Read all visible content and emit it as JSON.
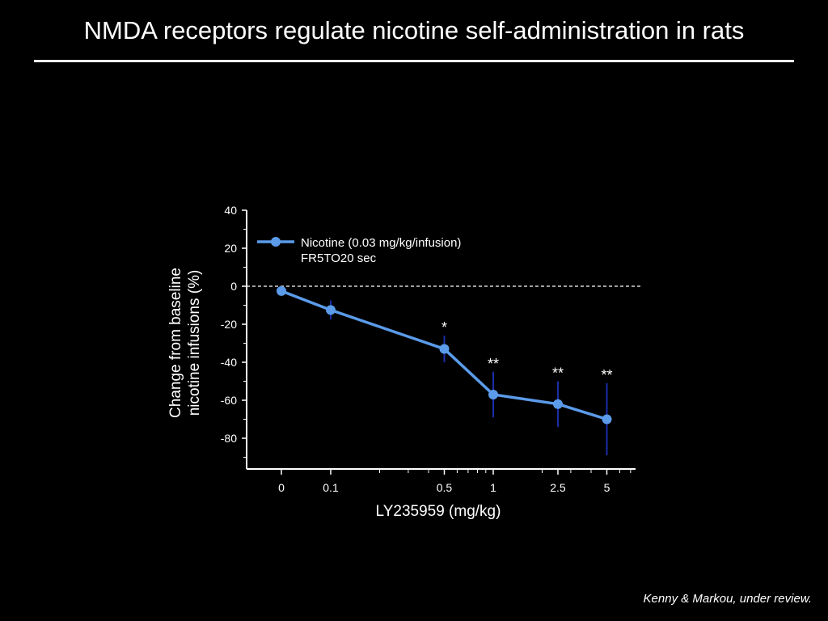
{
  "slide": {
    "title": "NMDA receptors regulate nicotine self-administration in rats",
    "citation": "Kenny & Markou, under review."
  },
  "chart_data": {
    "type": "line",
    "xlabel": "LY235959 (mg/kg)",
    "ylabel": "Change from baseline nicotine infusions (%)",
    "ylabel_lines": [
      "Change from baseline",
      "nicotine infusions (%)"
    ],
    "ylim": [
      -92,
      40
    ],
    "yticks": [
      40,
      20,
      0,
      -20,
      -40,
      -60,
      -80
    ],
    "x_scale": "log (with 0 control point)",
    "x_tick_labels": [
      "0",
      "0.1",
      "0.5",
      "1",
      "2.5",
      "5"
    ],
    "reference_line": {
      "y": 0,
      "style": "dashed"
    },
    "grid": false,
    "legend_position": "top-left",
    "legend": {
      "label_line1": "Nicotine (0.03 mg/kg/infusion)",
      "label_line2": "FR5TO20 sec"
    },
    "series": [
      {
        "name": "Nicotine (0.03 mg/kg/infusion) FR5TO20 sec",
        "color": "#5b9bea",
        "error_color": "#1a2ea8",
        "points": [
          {
            "x": 0,
            "y": -2.5,
            "err": 0,
            "sig": ""
          },
          {
            "x": 0.1,
            "y": -12.5,
            "err": 5,
            "sig": ""
          },
          {
            "x": 0.5,
            "y": -33,
            "err": 7,
            "sig": "*"
          },
          {
            "x": 1,
            "y": -57,
            "err": 12,
            "sig": "**"
          },
          {
            "x": 2.5,
            "y": -62,
            "err": 12,
            "sig": "**"
          },
          {
            "x": 5,
            "y": -70,
            "err": 19,
            "sig": "**"
          }
        ]
      }
    ]
  }
}
